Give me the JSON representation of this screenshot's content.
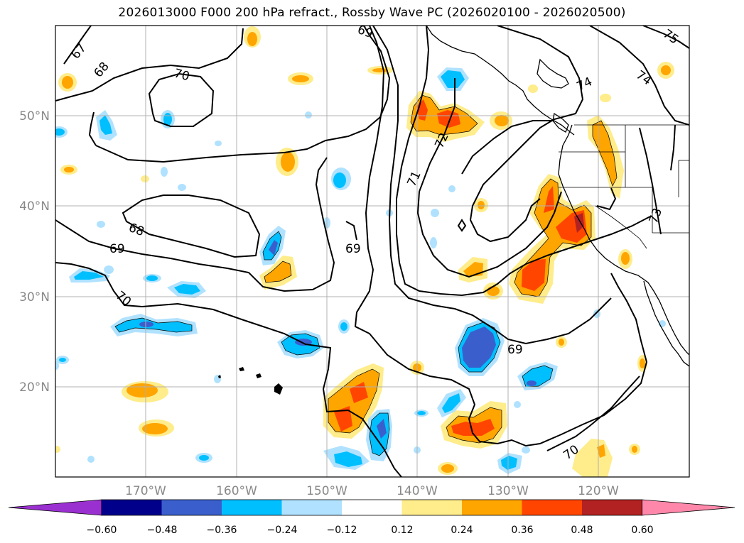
{
  "title": "2026013000 F000 200 hPa refract., Rossby Wave PC (2026020100 - 2026020500)",
  "lat_labels": [
    "50°N",
    "40°N",
    "30°N",
    "20°N"
  ],
  "lon_labels": [
    "170°W",
    "160°W",
    "150°W",
    "140°W",
    "130°W",
    "120°W"
  ],
  "contour_labels": [
    "67",
    "68",
    "70",
    "69",
    "68",
    "69",
    "70",
    "69",
    "71",
    "72",
    "74",
    "74",
    "75",
    "73",
    "70",
    "69"
  ],
  "colorbar": {
    "ticks": [
      "−0.60",
      "−0.48",
      "−0.36",
      "−0.24",
      "−0.12",
      "0.12",
      "0.24",
      "0.36",
      "0.48",
      "0.60"
    ],
    "colors": [
      "#9b30d0",
      "#00008b",
      "#3a5fcd",
      "#00bfff",
      "#b0e2ff",
      "#ffffff",
      "#ffec8b",
      "#ffa500",
      "#ff4500",
      "#b22222",
      "#ff88aa"
    ]
  },
  "colors": {
    "neg_light": "#b0e2ff",
    "neg_mid": "#00bfff",
    "neg_strong": "#3a5fcd",
    "pos_light": "#ffec8b",
    "pos_mid": "#ffa500",
    "pos_strong": "#ff4500",
    "pos_max": "#b22222"
  }
}
